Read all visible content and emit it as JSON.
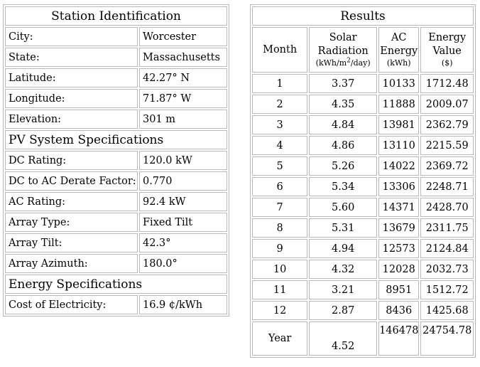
{
  "station": {
    "title": "Station Identification",
    "rows": [
      {
        "label": "City:",
        "value": "Worcester"
      },
      {
        "label": "State:",
        "value": "Massachusetts"
      },
      {
        "label": "Latitude:",
        "value": "42.27° N"
      },
      {
        "label": "Longitude:",
        "value": "71.87° W"
      },
      {
        "label": "Elevation:",
        "value": "301 m"
      }
    ]
  },
  "pv_system": {
    "title": "PV System Specifications",
    "rows": [
      {
        "label": "DC Rating:",
        "value": "120.0 kW"
      },
      {
        "label": "DC to AC Derate Factor:",
        "value": "0.770"
      },
      {
        "label": "AC Rating:",
        "value": "92.4 kW"
      },
      {
        "label": "Array Type:",
        "value": "Fixed Tilt"
      },
      {
        "label": "Array Tilt:",
        "value": "42.3°"
      },
      {
        "label": "Array Azimuth:",
        "value": "180.0°"
      }
    ]
  },
  "energy": {
    "title": "Energy Specifications",
    "rows": [
      {
        "label": "Cost of Electricity:",
        "value": "16.9 ¢/kWh"
      }
    ]
  },
  "results": {
    "title": "Results",
    "headers": {
      "month": "Month",
      "solar": "Solar Radiation",
      "solar_unit_pre": "(kWh/m",
      "solar_unit_sup": "2",
      "solar_unit_post": "/day)",
      "ac": "AC Energy",
      "ac_unit": "(kWh)",
      "value": "Energy Value",
      "value_unit": "($)"
    },
    "rows": [
      {
        "month": "1",
        "solar": "3.37",
        "ac": "10133",
        "value": "1712.48"
      },
      {
        "month": "2",
        "solar": "4.35",
        "ac": "11888",
        "value": "2009.07"
      },
      {
        "month": "3",
        "solar": "4.84",
        "ac": "13981",
        "value": "2362.79"
      },
      {
        "month": "4",
        "solar": "4.86",
        "ac": "13110",
        "value": "2215.59"
      },
      {
        "month": "5",
        "solar": "5.26",
        "ac": "14022",
        "value": "2369.72"
      },
      {
        "month": "6",
        "solar": "5.34",
        "ac": "13306",
        "value": "2248.71"
      },
      {
        "month": "7",
        "solar": "5.60",
        "ac": "14371",
        "value": "2428.70"
      },
      {
        "month": "8",
        "solar": "5.31",
        "ac": "13679",
        "value": "2311.75"
      },
      {
        "month": "9",
        "solar": "4.94",
        "ac": "12573",
        "value": "2124.84"
      },
      {
        "month": "10",
        "solar": "4.32",
        "ac": "12028",
        "value": "2032.73"
      },
      {
        "month": "11",
        "solar": "3.21",
        "ac": "8951",
        "value": "1512.72"
      },
      {
        "month": "12",
        "solar": "2.87",
        "ac": "8436",
        "value": "1425.68"
      }
    ],
    "year": {
      "month": "Year",
      "solar": "4.52",
      "ac": "146478",
      "value": "24754.78"
    }
  }
}
